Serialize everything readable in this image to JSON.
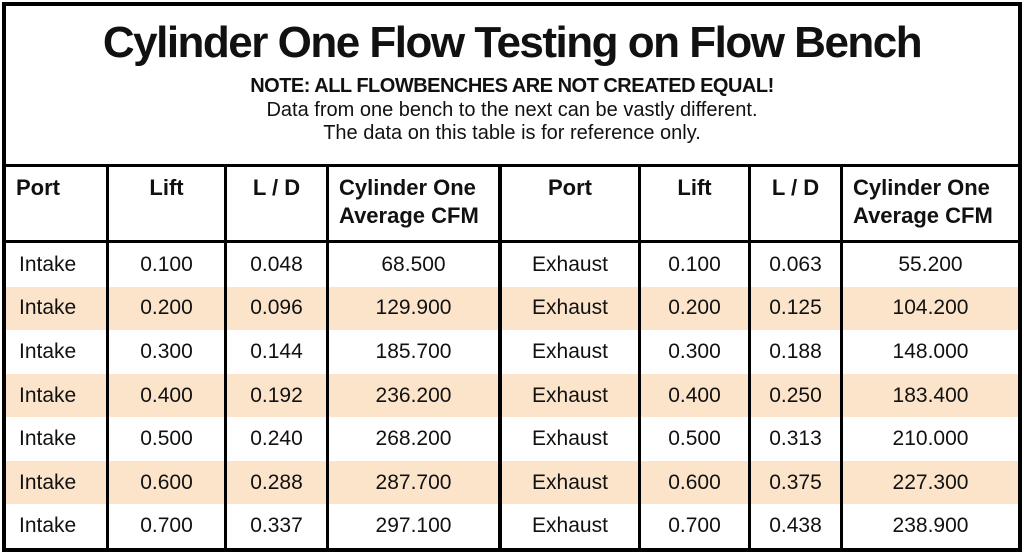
{
  "title": "Cylinder One Flow Testing on Flow Bench",
  "note": {
    "line1": "NOTE: ALL FLOWBENCHES ARE NOT CREATED EQUAL!",
    "line2": "Data from one bench to the next can be vastly different.",
    "line3": "The data on this table is for reference only."
  },
  "colors": {
    "stripe": "#FCE4CB",
    "border": "#000000",
    "text": "#111111"
  },
  "table": {
    "headers": {
      "port": "Port",
      "lift": "Lift",
      "ld": "L / D",
      "cfm_line1": "Cylinder One",
      "cfm_line2": "Average CFM"
    },
    "intake_rows": [
      {
        "port": "Intake",
        "lift": "0.100",
        "ld": "0.048",
        "cfm": "68.500"
      },
      {
        "port": "Intake",
        "lift": "0.200",
        "ld": "0.096",
        "cfm": "129.900"
      },
      {
        "port": "Intake",
        "lift": "0.300",
        "ld": "0.144",
        "cfm": "185.700"
      },
      {
        "port": "Intake",
        "lift": "0.400",
        "ld": "0.192",
        "cfm": "236.200"
      },
      {
        "port": "Intake",
        "lift": "0.500",
        "ld": "0.240",
        "cfm": "268.200"
      },
      {
        "port": "Intake",
        "lift": "0.600",
        "ld": "0.288",
        "cfm": "287.700"
      },
      {
        "port": "Intake",
        "lift": "0.700",
        "ld": "0.337",
        "cfm": "297.100"
      }
    ],
    "exhaust_rows": [
      {
        "port": "Exhaust",
        "lift": "0.100",
        "ld": "0.063",
        "cfm": "55.200"
      },
      {
        "port": "Exhaust",
        "lift": "0.200",
        "ld": "0.125",
        "cfm": "104.200"
      },
      {
        "port": "Exhaust",
        "lift": "0.300",
        "ld": "0.188",
        "cfm": "148.000"
      },
      {
        "port": "Exhaust",
        "lift": "0.400",
        "ld": "0.250",
        "cfm": "183.400"
      },
      {
        "port": "Exhaust",
        "lift": "0.500",
        "ld": "0.313",
        "cfm": "210.000"
      },
      {
        "port": "Exhaust",
        "lift": "0.600",
        "ld": "0.375",
        "cfm": "227.300"
      },
      {
        "port": "Exhaust",
        "lift": "0.700",
        "ld": "0.438",
        "cfm": "238.900"
      }
    ]
  }
}
